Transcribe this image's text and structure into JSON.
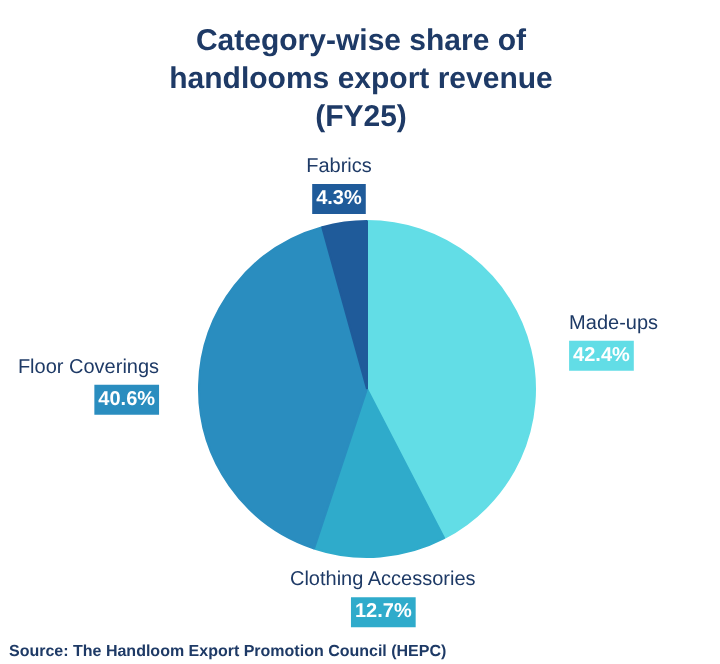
{
  "chart_data": {
    "type": "pie",
    "title": "Category-wise share of handlooms export revenue (FY25)",
    "categories": [
      "Made-ups",
      "Clothing Accessories",
      "Floor Coverings",
      "Fabrics"
    ],
    "values": [
      42.4,
      12.7,
      40.6,
      4.3
    ],
    "colors": [
      "#62dde6",
      "#2fabcb",
      "#2a8dbf",
      "#1f5b9a"
    ],
    "value_labels": [
      "42.4%",
      "12.7%",
      "40.6%",
      "4.3%"
    ],
    "annotations": [
      "Source: The Handloom Export Promotion Council (HEPC)"
    ]
  }
}
